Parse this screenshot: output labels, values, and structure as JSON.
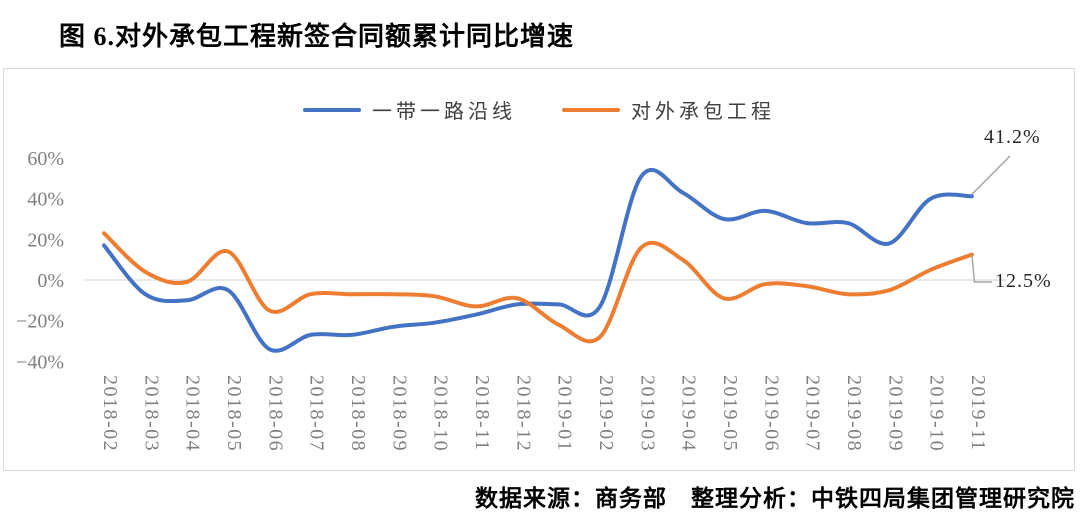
{
  "figure": {
    "title": "图 6.对外承包工程新签合同额累计同比增速",
    "source_note": "数据来源：商务部　整理分析：中铁四局集团管理研究院"
  },
  "colors": {
    "series_blue": "#4472C4",
    "series_orange": "#ED7D31",
    "gridline": "#D9D9D9",
    "panel_border": "#D9D9D9",
    "axis_text": "#808080",
    "leader_line": "#A6A6A6",
    "annotation_text": "#262626"
  },
  "chart_data": {
    "type": "line",
    "title": "图 6.对外承包工程新签合同额累计同比增速",
    "line_style": "smooth",
    "legend_position": "top-center",
    "grid": "zero-line-only",
    "xlabel": "",
    "ylabel": "",
    "categories": [
      "2018-02",
      "2018-03",
      "2018-04",
      "2018-05",
      "2018-06",
      "2018-07",
      "2018-08",
      "2018-09",
      "2018-10",
      "2018-11",
      "2018-12",
      "2019-01",
      "2019-02",
      "2019-03",
      "2019-04",
      "2019-05",
      "2019-06",
      "2019-07",
      "2019-08",
      "2019-09",
      "2019-10",
      "2019-11"
    ],
    "series": [
      {
        "name": "一带一路沿线",
        "color": "#4472C4",
        "values": [
          17,
          -7,
          -10,
          -5,
          -34,
          -27,
          -27,
          -23,
          -21,
          -17,
          -12,
          -12,
          -13,
          51,
          43,
          30,
          34,
          28,
          28,
          18,
          40,
          41.2
        ]
      },
      {
        "name": "对外承包工程",
        "color": "#ED7D31",
        "values": [
          23,
          4,
          -1,
          14,
          -15,
          -7,
          -7,
          -7,
          -8,
          -13,
          -9,
          -22,
          -28,
          16,
          10,
          -9,
          -2,
          -3,
          -7,
          -5,
          5,
          12.5
        ]
      }
    ],
    "y_axis": {
      "ticks": [
        {
          "label": "60%",
          "value": 60
        },
        {
          "label": "40%",
          "value": 40
        },
        {
          "label": "20%",
          "value": 20
        },
        {
          "label": "0%",
          "value": 0
        },
        {
          "label": "−20%",
          "value": -20
        },
        {
          "label": "−40%",
          "value": -40
        }
      ],
      "range": [
        -45,
        65
      ]
    },
    "annotations": [
      {
        "text": "41.2%",
        "series": "一带一路沿线",
        "category": "2019-11",
        "value": 41.2
      },
      {
        "text": "12.5%",
        "series": "对外承包工程",
        "category": "2019-11",
        "value": 12.5
      }
    ]
  }
}
